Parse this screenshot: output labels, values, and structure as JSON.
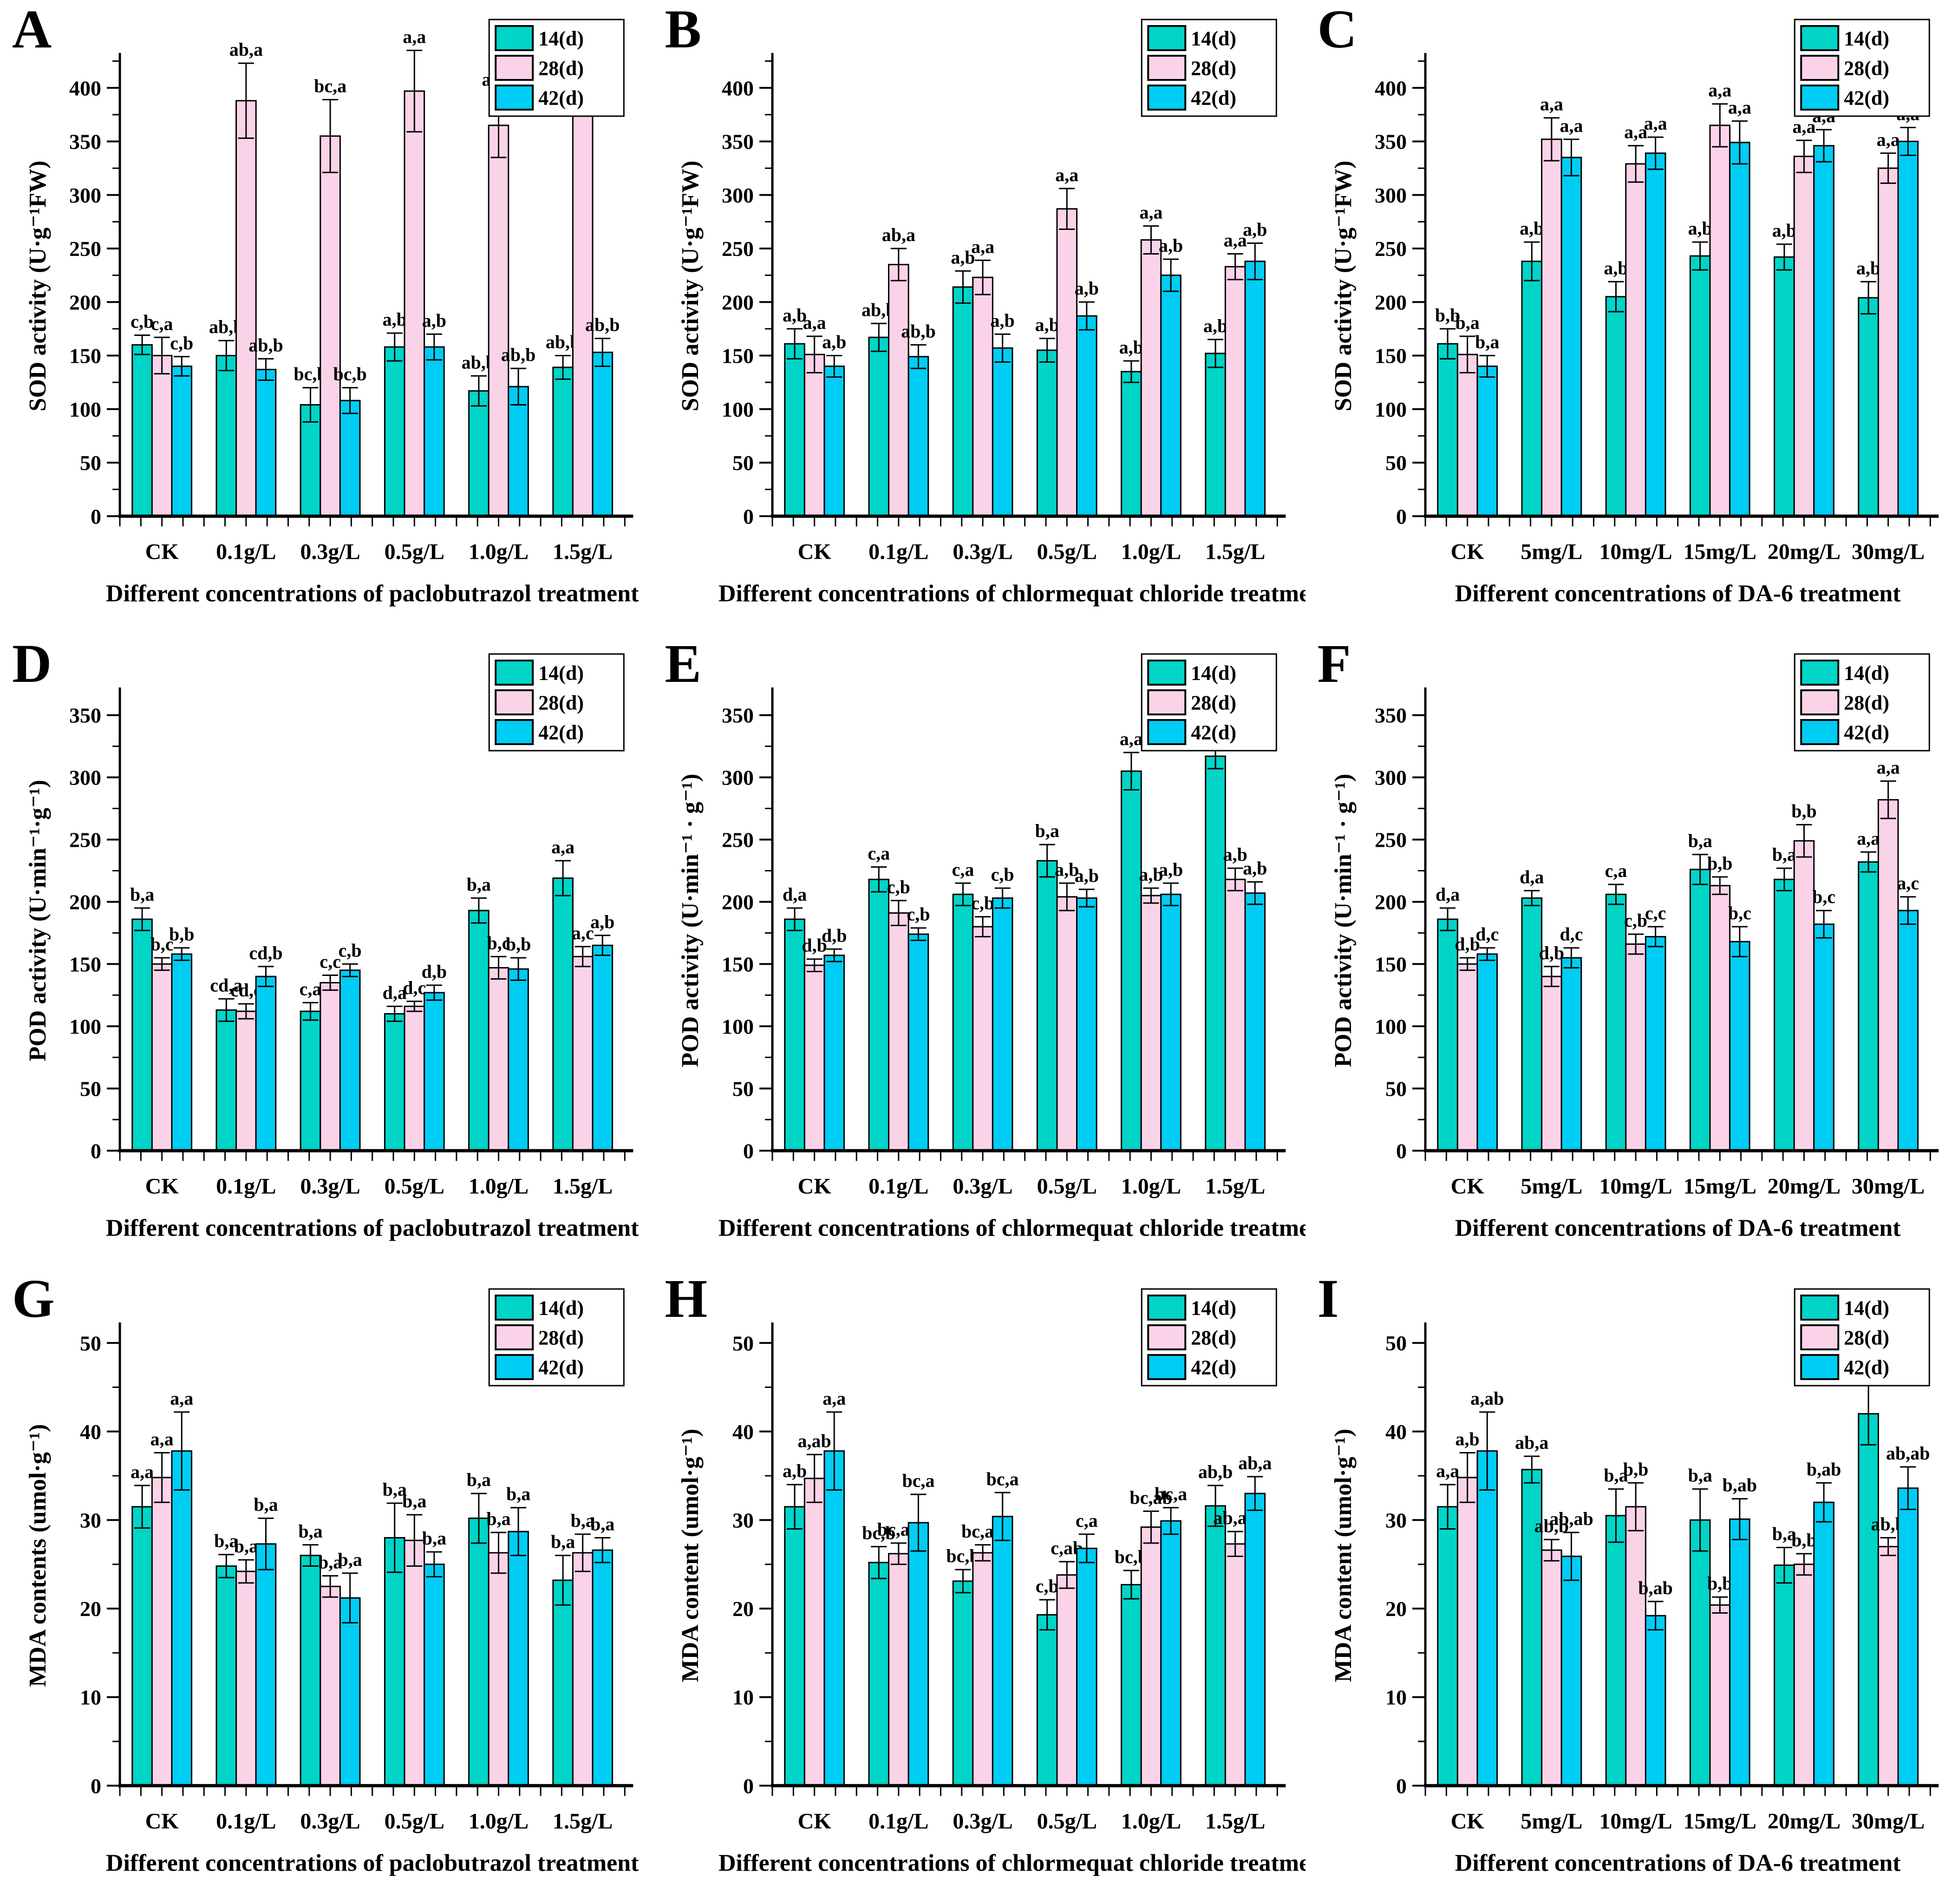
{
  "figure": {
    "background": "#ffffff"
  },
  "colors": {
    "d14": "#00D5C8",
    "d28": "#FBD3E8",
    "d42": "#00CDF4",
    "axis": "#000000"
  },
  "legend_labels": [
    "14(d)",
    "28(d)",
    "42(d)"
  ],
  "panels": {
    "a": "A",
    "b": "B",
    "c": "C",
    "d": "D",
    "e": "E",
    "f": "F",
    "g": "G",
    "h": "H",
    "i": "I"
  },
  "chart_data": [
    {
      "panel": "A",
      "type": "bar",
      "ylabel": "SOD activity (U·g⁻¹FW)",
      "xlabel": "Different concentrations of paclobutrazol treatment",
      "ylim": [
        0,
        430
      ],
      "ytick_step": 50,
      "ytick_max": 400,
      "grid": false,
      "legend_position": "top-right",
      "categories": [
        "CK",
        "0.1g/L",
        "0.3g/L",
        "0.5g/L",
        "1.0g/L",
        "1.5g/L"
      ],
      "series": [
        {
          "name": "14(d)",
          "color": "#00D5C8",
          "values": [
            160,
            150,
            104,
            158,
            117,
            139
          ],
          "errors": [
            9,
            14,
            16,
            13,
            14,
            11
          ],
          "labels": [
            "c,b",
            "ab,b",
            "bc,b",
            "a,b",
            "ab,b",
            "ab,b"
          ]
        },
        {
          "name": "28(d)",
          "color": "#FBD3E8",
          "values": [
            150,
            388,
            355,
            397,
            365,
            383
          ],
          "errors": [
            17,
            35,
            34,
            38,
            30,
            5
          ],
          "labels": [
            "c,a",
            "ab,a",
            "bc,a",
            "a,a",
            "ab,a",
            "ab,a"
          ]
        },
        {
          "name": "42(d)",
          "color": "#00CDF4",
          "values": [
            140,
            137,
            108,
            158,
            121,
            153
          ],
          "errors": [
            9,
            10,
            12,
            12,
            17,
            13
          ],
          "labels": [
            "c,b",
            "ab,b",
            "bc,b",
            "a,b",
            "ab,b",
            "ab,b"
          ]
        }
      ]
    },
    {
      "panel": "B",
      "type": "bar",
      "ylabel": "SOD activity (U·g⁻¹FW)",
      "xlabel": "Different concentrations of chlormequat chloride treatment",
      "ylim": [
        0,
        430
      ],
      "ytick_step": 50,
      "ytick_max": 400,
      "grid": false,
      "legend_position": "top-right",
      "categories": [
        "CK",
        "0.1g/L",
        "0.3g/L",
        "0.5g/L",
        "1.0g/L",
        "1.5g/L"
      ],
      "series": [
        {
          "name": "14(d)",
          "color": "#00D5C8",
          "values": [
            161,
            167,
            214,
            155,
            135,
            152
          ],
          "errors": [
            14,
            13,
            15,
            11,
            10,
            13
          ],
          "labels": [
            "a,b",
            "ab,b",
            "a,b",
            "a,b",
            "a,b",
            "a,b"
          ]
        },
        {
          "name": "28(d)",
          "color": "#FBD3E8",
          "values": [
            151,
            235,
            223,
            287,
            258,
            233
          ],
          "errors": [
            17,
            15,
            16,
            19,
            13,
            12
          ],
          "labels": [
            "a,a",
            "ab,a",
            "a,a",
            "a,a",
            "a,a",
            "a,a"
          ]
        },
        {
          "name": "42(d)",
          "color": "#00CDF4",
          "values": [
            140,
            149,
            157,
            187,
            225,
            238
          ],
          "errors": [
            10,
            11,
            13,
            13,
            15,
            17
          ],
          "labels": [
            "a,b",
            "ab,b",
            "a,b",
            "a,b",
            "a,b",
            "a,b"
          ]
        }
      ]
    },
    {
      "panel": "C",
      "type": "bar",
      "ylabel": "SOD activity (U·g⁻¹FW)",
      "xlabel": "Different concentrations of DA-6 treatment",
      "ylim": [
        0,
        430
      ],
      "ytick_step": 50,
      "ytick_max": 400,
      "grid": false,
      "legend_position": "top-right",
      "categories": [
        "CK",
        "5mg/L",
        "10mg/L",
        "15mg/L",
        "20mg/L",
        "30mg/L"
      ],
      "series": [
        {
          "name": "14(d)",
          "color": "#00D5C8",
          "values": [
            161,
            238,
            205,
            243,
            242,
            204
          ],
          "errors": [
            14,
            18,
            14,
            13,
            12,
            15
          ],
          "labels": [
            "b,b",
            "a,b",
            "a,b",
            "a,b",
            "a,b",
            "a,b"
          ]
        },
        {
          "name": "28(d)",
          "color": "#FBD3E8",
          "values": [
            151,
            352,
            329,
            365,
            336,
            325
          ],
          "errors": [
            17,
            20,
            17,
            20,
            15,
            14
          ],
          "labels": [
            "b,a",
            "a,a",
            "a,a",
            "a,a",
            "a,a",
            "a,a"
          ]
        },
        {
          "name": "42(d)",
          "color": "#00CDF4",
          "values": [
            140,
            335,
            339,
            349,
            346,
            350
          ],
          "errors": [
            10,
            17,
            15,
            20,
            15,
            13
          ],
          "labels": [
            "b,a",
            "a,a",
            "a,a",
            "a,a",
            "a,a",
            "a,a"
          ]
        }
      ]
    },
    {
      "panel": "D",
      "type": "bar",
      "ylabel": "POD activity (U·min⁻¹·g⁻¹)",
      "xlabel": "Different concentrations of paclobutrazol treatment",
      "ylim": [
        0,
        370
      ],
      "ytick_step": 50,
      "ytick_max": 350,
      "grid": false,
      "legend_position": "top-right",
      "categories": [
        "CK",
        "0.1g/L",
        "0.3g/L",
        "0.5g/L",
        "1.0g/L",
        "1.5g/L"
      ],
      "series": [
        {
          "name": "14(d)",
          "color": "#00D5C8",
          "values": [
            186,
            113,
            112,
            110,
            193,
            219
          ],
          "errors": [
            9,
            9,
            7,
            6,
            10,
            14
          ],
          "labels": [
            "b,a",
            "cd,a",
            "c,a",
            "d,a",
            "b,a",
            "a,a"
          ]
        },
        {
          "name": "28(d)",
          "color": "#FBD3E8",
          "values": [
            150,
            112,
            135,
            116,
            147,
            156
          ],
          "errors": [
            5,
            6,
            6,
            4,
            9,
            8
          ],
          "labels": [
            "b,c",
            "cd,c",
            "c,c",
            "d,c",
            "b,c",
            "a,c"
          ]
        },
        {
          "name": "42(d)",
          "color": "#00CDF4",
          "values": [
            158,
            140,
            145,
            127,
            146,
            165
          ],
          "errors": [
            5,
            8,
            5,
            6,
            9,
            8
          ],
          "labels": [
            "b,b",
            "cd,b",
            "c,b",
            "d,b",
            "b,b",
            "a,b"
          ]
        }
      ]
    },
    {
      "panel": "E",
      "type": "bar",
      "ylabel": "POD activity (U·min⁻¹ · g⁻¹)",
      "xlabel": "Different concentrations of chlormequat chloride treatment",
      "ylim": [
        0,
        370
      ],
      "ytick_step": 50,
      "ytick_max": 350,
      "grid": false,
      "legend_position": "top-right",
      "categories": [
        "CK",
        "0.1g/L",
        "0.3g/L",
        "0.5g/L",
        "1.0g/L",
        "1.5g/L"
      ],
      "series": [
        {
          "name": "14(d)",
          "color": "#00D5C8",
          "values": [
            186,
            218,
            206,
            233,
            305,
            317
          ],
          "errors": [
            9,
            10,
            9,
            13,
            15,
            10
          ],
          "labels": [
            "d,a",
            "c,a",
            "c,a",
            "b,a",
            "a,a",
            "a,a"
          ]
        },
        {
          "name": "28(d)",
          "color": "#FBD3E8",
          "values": [
            149,
            191,
            180,
            204,
            205,
            218
          ],
          "errors": [
            5,
            10,
            8,
            11,
            6,
            9
          ],
          "labels": [
            "d,b",
            "c,b",
            "c,b",
            "a,b",
            "a,b",
            "a,b"
          ]
        },
        {
          "name": "42(d)",
          "color": "#00CDF4",
          "values": [
            157,
            174,
            203,
            203,
            206,
            207
          ],
          "errors": [
            5,
            5,
            8,
            7,
            9,
            9
          ],
          "labels": [
            "d,b",
            "c,b",
            "c,b",
            "a,b",
            "a,b",
            "a,b"
          ]
        }
      ]
    },
    {
      "panel": "F",
      "type": "bar",
      "ylabel": "POD activity (U·min⁻¹ · g⁻¹)",
      "xlabel": "Different concentrations of DA-6 treatment",
      "ylim": [
        0,
        370
      ],
      "ytick_step": 50,
      "ytick_max": 350,
      "grid": false,
      "legend_position": "top-right",
      "categories": [
        "CK",
        "5mg/L",
        "10mg/L",
        "15mg/L",
        "20mg/L",
        "30mg/L"
      ],
      "series": [
        {
          "name": "14(d)",
          "color": "#00D5C8",
          "values": [
            186,
            203,
            206,
            226,
            218,
            232
          ],
          "errors": [
            9,
            6,
            8,
            12,
            9,
            8
          ],
          "labels": [
            "d,a",
            "d,a",
            "c,a",
            "b,a",
            "b,a",
            "a,a"
          ]
        },
        {
          "name": "28(d)",
          "color": "#FBD3E8",
          "values": [
            150,
            140,
            166,
            213,
            249,
            282
          ],
          "errors": [
            5,
            8,
            8,
            7,
            13,
            15
          ],
          "labels": [
            "d,b",
            "d,b",
            "c,b",
            "b,b",
            "b,b",
            "a,a"
          ]
        },
        {
          "name": "42(d)",
          "color": "#00CDF4",
          "values": [
            158,
            155,
            172,
            168,
            182,
            193
          ],
          "errors": [
            5,
            8,
            8,
            12,
            11,
            11
          ],
          "labels": [
            "d,c",
            "d,c",
            "c,c",
            "b,c",
            "b,c",
            "a,c"
          ]
        }
      ]
    },
    {
      "panel": "G",
      "type": "bar",
      "ylabel": "MDA contents (umol·g⁻¹)",
      "xlabel": "Different concentrations of paclobutrazol treatment",
      "ylim": [
        0,
        52
      ],
      "ytick_step": 10,
      "ytick_max": 50,
      "grid": false,
      "legend_position": "top-right",
      "categories": [
        "CK",
        "0.1g/L",
        "0.3g/L",
        "0.5g/L",
        "1.0g/L",
        "1.5g/L"
      ],
      "series": [
        {
          "name": "14(d)",
          "color": "#00D5C8",
          "values": [
            31.5,
            24.8,
            26.0,
            28.0,
            30.2,
            23.2
          ],
          "errors": [
            2.4,
            1.3,
            1.2,
            3.9,
            2.8,
            2.8
          ],
          "labels": [
            "a,a",
            "b,a",
            "b,a",
            "b,a",
            "b,a",
            "b,a"
          ]
        },
        {
          "name": "28(d)",
          "color": "#FBD3E8",
          "values": [
            34.8,
            24.2,
            22.5,
            27.7,
            26.3,
            26.3
          ],
          "errors": [
            2.8,
            1.3,
            1.2,
            2.9,
            2.3,
            2.1
          ],
          "labels": [
            "a,a",
            "b,a",
            "b,a",
            "b,a",
            "b,a",
            "b,a"
          ]
        },
        {
          "name": "42(d)",
          "color": "#00CDF4",
          "values": [
            37.8,
            27.3,
            21.2,
            25.0,
            28.7,
            26.6
          ],
          "errors": [
            4.4,
            2.9,
            2.8,
            1.4,
            2.7,
            1.4
          ],
          "labels": [
            "a,a",
            "b,a",
            "b,a",
            "b,a",
            "b,a",
            "b,a"
          ]
        }
      ]
    },
    {
      "panel": "H",
      "type": "bar",
      "ylabel": "MDA content (umol·g⁻¹)",
      "xlabel": "Different concentrations of chlormequat chloride treatment",
      "ylim": [
        0,
        52
      ],
      "ytick_step": 10,
      "ytick_max": 50,
      "grid": false,
      "legend_position": "top-right",
      "categories": [
        "CK",
        "0.1g/L",
        "0.3g/L",
        "0.5g/L",
        "1.0g/L",
        "1.5g/L"
      ],
      "series": [
        {
          "name": "14(d)",
          "color": "#00D5C8",
          "values": [
            31.5,
            25.2,
            23.1,
            19.3,
            22.7,
            31.6
          ],
          "errors": [
            2.5,
            1.8,
            1.3,
            1.7,
            1.6,
            2.3
          ],
          "labels": [
            "a,b",
            "bc,b",
            "bc,b",
            "c,b",
            "bc,b",
            "ab,b"
          ]
        },
        {
          "name": "28(d)",
          "color": "#FBD3E8",
          "values": [
            34.7,
            26.2,
            26.3,
            23.8,
            29.2,
            27.3
          ],
          "errors": [
            2.7,
            1.2,
            0.9,
            1.5,
            1.8,
            1.4
          ],
          "labels": [
            "a,ab",
            "bc,ab",
            "bc,ab",
            "c,ab",
            "bc,ab",
            "ab,ab"
          ]
        },
        {
          "name": "42(d)",
          "color": "#00CDF4",
          "values": [
            37.8,
            29.7,
            30.4,
            26.8,
            29.9,
            33.0
          ],
          "errors": [
            4.4,
            3.2,
            2.7,
            1.6,
            1.5,
            1.9
          ],
          "labels": [
            "a,a",
            "bc,a",
            "bc,a",
            "c,a",
            "bc,a",
            "ab,a"
          ]
        }
      ]
    },
    {
      "panel": "I",
      "type": "bar",
      "ylabel": "MDA content (umol·g⁻¹)",
      "xlabel": "Different concentrations of DA-6 treatment",
      "ylim": [
        0,
        52
      ],
      "ytick_step": 10,
      "ytick_max": 50,
      "grid": false,
      "legend_position": "top-right",
      "categories": [
        "CK",
        "5mg/L",
        "10mg/L",
        "15mg/L",
        "20mg/L",
        "30mg/L"
      ],
      "series": [
        {
          "name": "14(d)",
          "color": "#00D5C8",
          "values": [
            31.5,
            35.7,
            30.5,
            30.0,
            24.9,
            42.0
          ],
          "errors": [
            2.5,
            1.5,
            3.0,
            3.5,
            2.0,
            3.5
          ],
          "labels": [
            "a,a",
            "ab,a",
            "b,a",
            "b,a",
            "b,a",
            "ab,a"
          ]
        },
        {
          "name": "28(d)",
          "color": "#FBD3E8",
          "values": [
            34.8,
            26.6,
            31.5,
            20.4,
            25.0,
            27.0
          ],
          "errors": [
            2.8,
            1.2,
            2.7,
            0.9,
            1.2,
            1.0
          ],
          "labels": [
            "a,b",
            "ab,b",
            "b,b",
            "b,b",
            "b,b",
            "ab,b"
          ]
        },
        {
          "name": "42(d)",
          "color": "#00CDF4",
          "values": [
            37.8,
            25.9,
            19.2,
            30.1,
            32.0,
            33.6
          ],
          "errors": [
            4.4,
            2.7,
            1.6,
            2.3,
            2.2,
            2.4
          ],
          "labels": [
            "a,ab",
            "ab,ab",
            "b,ab",
            "b,ab",
            "b,ab",
            "ab,ab"
          ]
        }
      ]
    }
  ]
}
